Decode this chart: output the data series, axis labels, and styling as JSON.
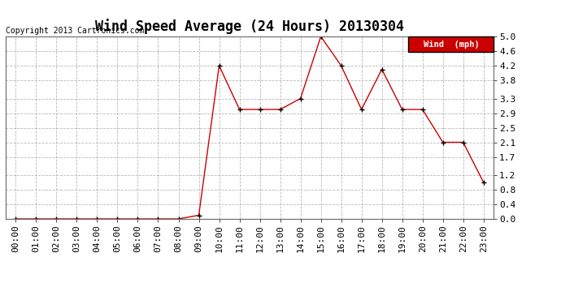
{
  "title": "Wind Speed Average (24 Hours) 20130304",
  "copyright": "Copyright 2013 Cartronics.com",
  "legend_label": "Wind  (mph)",
  "x_labels": [
    "00:00",
    "01:00",
    "02:00",
    "03:00",
    "04:00",
    "05:00",
    "06:00",
    "07:00",
    "08:00",
    "09:00",
    "10:00",
    "11:00",
    "12:00",
    "13:00",
    "14:00",
    "15:00",
    "16:00",
    "17:00",
    "18:00",
    "19:00",
    "20:00",
    "21:00",
    "22:00",
    "23:00"
  ],
  "y_values": [
    0.0,
    0.0,
    0.0,
    0.0,
    0.0,
    0.0,
    0.0,
    0.0,
    0.0,
    0.1,
    4.2,
    3.0,
    3.0,
    3.0,
    3.3,
    5.0,
    4.2,
    3.0,
    4.1,
    3.0,
    3.0,
    2.1,
    2.1,
    1.0
  ],
  "y_ticks": [
    0.0,
    0.4,
    0.8,
    1.2,
    1.7,
    2.1,
    2.5,
    2.9,
    3.3,
    3.8,
    4.2,
    4.6,
    5.0
  ],
  "y_tick_labels": [
    "0.0",
    "0.4",
    "0.8",
    "1.2",
    "1.7",
    "2.1",
    "2.5",
    "2.9",
    "3.3",
    "3.8",
    "4.2",
    "4.6",
    "5.0"
  ],
  "line_color": "#cc0000",
  "marker": "+",
  "marker_color": "#000000",
  "bg_color": "#ffffff",
  "grid_color": "#b0b0b0",
  "legend_bg": "#cc0000",
  "legend_text_color": "#ffffff",
  "title_fontsize": 12,
  "copyright_fontsize": 7,
  "tick_fontsize": 8,
  "ylim": [
    0.0,
    5.0
  ],
  "figsize": [
    6.9,
    3.75
  ],
  "dpi": 100
}
